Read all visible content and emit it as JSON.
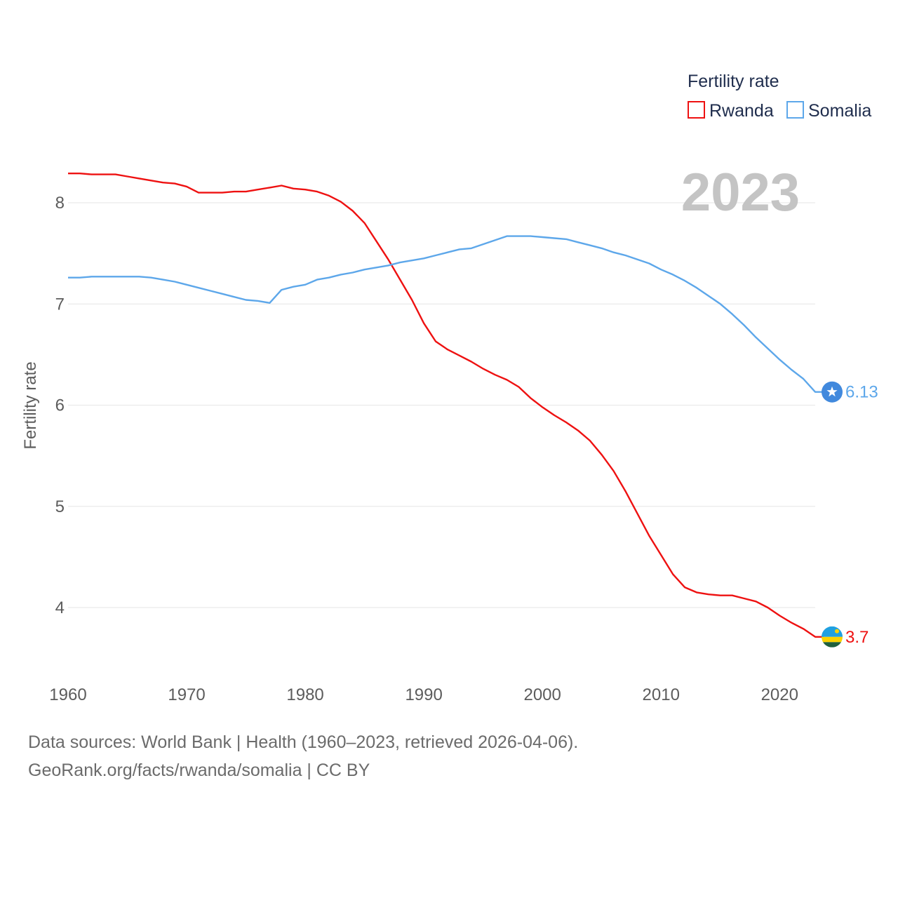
{
  "chart_data": {
    "type": "line",
    "ylabel": "Fertility rate",
    "xlabel": "",
    "legend_title": "Fertility rate",
    "legend_position": "top-right",
    "highlight_year": "2023",
    "xlim": [
      1960,
      2023
    ],
    "ylim": [
      3.45,
      8.5
    ],
    "x_ticks": [
      1960,
      1970,
      1980,
      1990,
      2000,
      2010,
      2020
    ],
    "x_tick_labels": [
      "1960",
      "1970",
      "1980",
      "1990",
      "2000",
      "2010",
      "2020"
    ],
    "y_ticks": [
      4,
      5,
      6,
      7,
      8
    ],
    "y_tick_labels": [
      "4",
      "5",
      "6",
      "7",
      "8"
    ],
    "x": [
      1960,
      1961,
      1962,
      1963,
      1964,
      1965,
      1966,
      1967,
      1968,
      1969,
      1970,
      1971,
      1972,
      1973,
      1974,
      1975,
      1976,
      1977,
      1978,
      1979,
      1980,
      1981,
      1982,
      1983,
      1984,
      1985,
      1986,
      1987,
      1988,
      1989,
      1990,
      1991,
      1992,
      1993,
      1994,
      1995,
      1996,
      1997,
      1998,
      1999,
      2000,
      2001,
      2002,
      2003,
      2004,
      2005,
      2006,
      2007,
      2008,
      2009,
      2010,
      2011,
      2012,
      2013,
      2014,
      2015,
      2016,
      2017,
      2018,
      2019,
      2020,
      2021,
      2022,
      2023
    ],
    "series": [
      {
        "name": "Rwanda",
        "color": "#ee1111",
        "end_label": "3.7",
        "values": [
          8.29,
          8.29,
          8.28,
          8.28,
          8.28,
          8.26,
          8.24,
          8.22,
          8.2,
          8.19,
          8.16,
          8.1,
          8.1,
          8.1,
          8.11,
          8.11,
          8.13,
          8.15,
          8.17,
          8.14,
          8.13,
          8.11,
          8.07,
          8.01,
          7.92,
          7.8,
          7.62,
          7.44,
          7.24,
          7.04,
          6.81,
          6.63,
          6.55,
          6.49,
          6.43,
          6.36,
          6.3,
          6.25,
          6.18,
          6.07,
          5.98,
          5.9,
          5.83,
          5.75,
          5.65,
          5.51,
          5.35,
          5.15,
          4.93,
          4.71,
          4.52,
          4.33,
          4.2,
          4.15,
          4.13,
          4.12,
          4.12,
          4.09,
          4.06,
          4.0,
          3.92,
          3.85,
          3.79,
          3.71
        ]
      },
      {
        "name": "Somalia",
        "color": "#5da7ea",
        "end_label": "6.13",
        "values": [
          7.26,
          7.26,
          7.27,
          7.27,
          7.27,
          7.27,
          7.27,
          7.26,
          7.24,
          7.22,
          7.19,
          7.16,
          7.13,
          7.1,
          7.07,
          7.04,
          7.03,
          7.01,
          7.14,
          7.17,
          7.19,
          7.24,
          7.26,
          7.29,
          7.31,
          7.34,
          7.36,
          7.38,
          7.41,
          7.43,
          7.45,
          7.48,
          7.51,
          7.54,
          7.55,
          7.59,
          7.63,
          7.67,
          7.67,
          7.67,
          7.66,
          7.65,
          7.64,
          7.61,
          7.58,
          7.55,
          7.51,
          7.48,
          7.44,
          7.4,
          7.34,
          7.29,
          7.23,
          7.16,
          7.08,
          7.0,
          6.9,
          6.79,
          6.67,
          6.56,
          6.45,
          6.35,
          6.26,
          6.13
        ]
      }
    ]
  },
  "footer": {
    "source_line_1": "Data sources: World Bank | Health (1960–2023, retrieved 2026-04-06).",
    "source_line_2": "GeoRank.org/facts/rwanda/somalia | CC BY"
  }
}
